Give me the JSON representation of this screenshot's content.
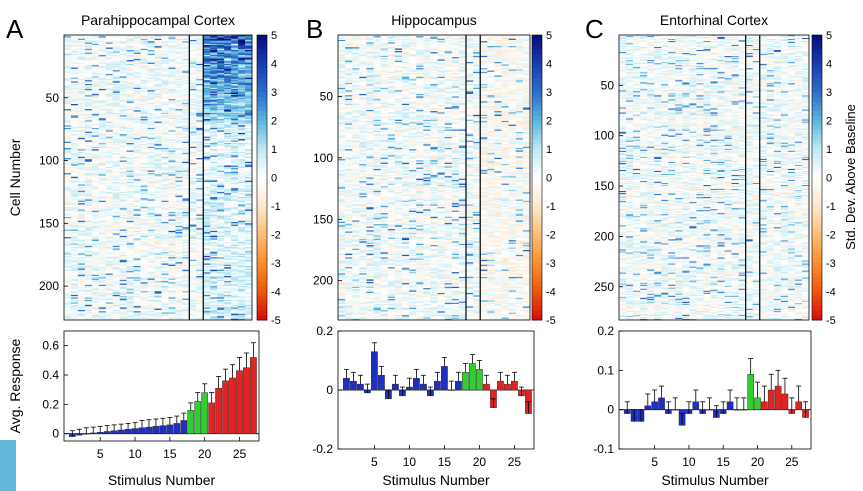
{
  "chart_data": [
    {
      "panel": "A",
      "type": "heatmap",
      "title": "Parahippocampal Cortex",
      "ylabel": "Cell Number",
      "y_ticks": [
        50,
        100,
        150,
        200
      ],
      "n_cells": 227,
      "n_stimuli": 27,
      "dividers_after_stimulus": [
        18,
        20
      ],
      "clim": [
        -5,
        5
      ]
    },
    {
      "panel": "B",
      "type": "heatmap",
      "title": "Hippocampus",
      "y_ticks": [
        50,
        100,
        150,
        200
      ],
      "n_cells": 232,
      "n_stimuli": 27,
      "dividers_after_stimulus": [
        18,
        20
      ],
      "clim": [
        -5,
        5
      ]
    },
    {
      "panel": "C",
      "type": "heatmap",
      "title": "Entorhinal Cortex",
      "y_ticks": [
        50,
        100,
        150,
        200,
        250
      ],
      "n_cells": 283,
      "n_stimuli": 27,
      "dividers_after_stimulus": [
        18,
        20
      ],
      "clim": [
        -5,
        5
      ]
    },
    {
      "panel": "A",
      "type": "bar",
      "ylabel": "Avg. Response",
      "xlabel": "Stimulus Number",
      "ylim": [
        -0.05,
        0.7
      ],
      "y_ticks": [
        0,
        0.2,
        0.4,
        0.6
      ],
      "y_tick_labels": [
        "0",
        "0.2",
        "0.4",
        "0.6"
      ],
      "x_ticks": [
        5,
        10,
        15,
        20,
        25
      ],
      "x": [
        1,
        2,
        3,
        4,
        5,
        6,
        7,
        8,
        9,
        10,
        11,
        12,
        13,
        14,
        15,
        16,
        17,
        18,
        19,
        20,
        21,
        22,
        23,
        24,
        25,
        26,
        27
      ],
      "values": [
        -0.02,
        -0.01,
        0.0,
        0.005,
        0.01,
        0.015,
        0.02,
        0.025,
        0.03,
        0.035,
        0.04,
        0.045,
        0.05,
        0.055,
        0.06,
        0.07,
        0.09,
        0.16,
        0.22,
        0.28,
        0.21,
        0.31,
        0.36,
        0.38,
        0.43,
        0.45,
        0.52
      ],
      "errors": [
        0.04,
        0.04,
        0.04,
        0.04,
        0.04,
        0.04,
        0.04,
        0.04,
        0.04,
        0.04,
        0.05,
        0.05,
        0.05,
        0.05,
        0.05,
        0.05,
        0.05,
        0.05,
        0.06,
        0.06,
        0.07,
        0.08,
        0.08,
        0.09,
        0.09,
        0.1,
        0.1
      ],
      "category_colors": [
        "#1f2fbf",
        "#1f2fbf",
        "#1f2fbf",
        "#1f2fbf",
        "#1f2fbf",
        "#1f2fbf",
        "#1f2fbf",
        "#1f2fbf",
        "#1f2fbf",
        "#1f2fbf",
        "#1f2fbf",
        "#1f2fbf",
        "#1f2fbf",
        "#1f2fbf",
        "#1f2fbf",
        "#1f2fbf",
        "#1f2fbf",
        "#33cc33",
        "#33cc33",
        "#33cc33",
        "#e02424",
        "#e02424",
        "#e02424",
        "#e02424",
        "#e02424",
        "#e02424",
        "#e02424"
      ]
    },
    {
      "panel": "B",
      "type": "bar",
      "xlabel": "Stimulus Number",
      "ylim": [
        -0.2,
        0.2
      ],
      "y_ticks": [
        -0.2,
        0,
        0.2
      ],
      "y_tick_labels": [
        "-0.2",
        "0",
        "0.2"
      ],
      "x_ticks": [
        5,
        10,
        15,
        20,
        25
      ],
      "x": [
        1,
        2,
        3,
        4,
        5,
        6,
        7,
        8,
        9,
        10,
        11,
        12,
        13,
        14,
        15,
        16,
        17,
        18,
        19,
        20,
        21,
        22,
        23,
        24,
        25,
        26,
        27
      ],
      "values": [
        0.04,
        0.03,
        0.02,
        -0.01,
        0.13,
        0.05,
        -0.03,
        0.02,
        -0.02,
        0.01,
        0.04,
        0.02,
        -0.02,
        0.03,
        0.08,
        0.0,
        0.03,
        0.06,
        0.09,
        0.07,
        0.02,
        -0.06,
        0.03,
        0.02,
        0.03,
        -0.02,
        -0.08
      ],
      "errors": [
        0.03,
        0.03,
        0.03,
        0.03,
        0.03,
        0.03,
        0.03,
        0.03,
        0.03,
        0.03,
        0.03,
        0.03,
        0.03,
        0.03,
        0.03,
        0.03,
        0.03,
        0.03,
        0.03,
        0.03,
        0.03,
        0.03,
        0.03,
        0.03,
        0.03,
        0.03,
        0.04
      ],
      "category_colors": [
        "#1f2fbf",
        "#1f2fbf",
        "#1f2fbf",
        "#1f2fbf",
        "#1f2fbf",
        "#1f2fbf",
        "#1f2fbf",
        "#1f2fbf",
        "#1f2fbf",
        "#1f2fbf",
        "#1f2fbf",
        "#1f2fbf",
        "#1f2fbf",
        "#1f2fbf",
        "#1f2fbf",
        "#1f2fbf",
        "#1f2fbf",
        "#33cc33",
        "#33cc33",
        "#33cc33",
        "#e02424",
        "#e02424",
        "#e02424",
        "#e02424",
        "#e02424",
        "#e02424",
        "#e02424"
      ]
    },
    {
      "panel": "C",
      "type": "bar",
      "xlabel": "Stimulus Number",
      "ylim": [
        -0.1,
        0.2
      ],
      "y_ticks": [
        -0.1,
        0,
        0.1,
        0.2
      ],
      "y_tick_labels": [
        "-0.1",
        "0",
        "0.1",
        "0.2"
      ],
      "x_ticks": [
        5,
        10,
        15,
        20,
        25
      ],
      "x": [
        1,
        2,
        3,
        4,
        5,
        6,
        7,
        8,
        9,
        10,
        11,
        12,
        13,
        14,
        15,
        16,
        17,
        18,
        19,
        20,
        21,
        22,
        23,
        24,
        25,
        26,
        27
      ],
      "values": [
        -0.01,
        -0.03,
        -0.03,
        0.01,
        0.02,
        0.03,
        -0.01,
        0.0,
        -0.04,
        -0.01,
        0.02,
        -0.01,
        0.0,
        -0.02,
        -0.01,
        0.02,
        0.0,
        0.0,
        0.09,
        0.03,
        0.02,
        0.05,
        0.06,
        0.04,
        -0.01,
        0.02,
        -0.02
      ],
      "errors": [
        0.03,
        0.03,
        0.03,
        0.03,
        0.03,
        0.03,
        0.03,
        0.03,
        0.03,
        0.03,
        0.03,
        0.03,
        0.03,
        0.03,
        0.03,
        0.03,
        0.03,
        0.03,
        0.04,
        0.04,
        0.04,
        0.04,
        0.04,
        0.04,
        0.04,
        0.04,
        0.04
      ],
      "category_colors": [
        "#1f2fbf",
        "#1f2fbf",
        "#1f2fbf",
        "#1f2fbf",
        "#1f2fbf",
        "#1f2fbf",
        "#1f2fbf",
        "#1f2fbf",
        "#1f2fbf",
        "#1f2fbf",
        "#1f2fbf",
        "#1f2fbf",
        "#1f2fbf",
        "#1f2fbf",
        "#1f2fbf",
        "#1f2fbf",
        "#1f2fbf",
        "#33cc33",
        "#33cc33",
        "#33cc33",
        "#e02424",
        "#e02424",
        "#e02424",
        "#e02424",
        "#e02424",
        "#e02424",
        "#e02424"
      ]
    }
  ],
  "colorbar": {
    "label": "Std. Dev. Above Baseline",
    "ticks": [
      5,
      4,
      3,
      2,
      1,
      0,
      -1,
      -2,
      -3,
      -4,
      -5
    ],
    "colors": [
      "#0a0f80",
      "#1a3fb0",
      "#2f70c9",
      "#5fb6df",
      "#bfe9f4",
      "#ffffff",
      "#fde8d0",
      "#fbbf7a",
      "#f99030",
      "#f05a10",
      "#d81010"
    ]
  },
  "divider_color": "#000000"
}
